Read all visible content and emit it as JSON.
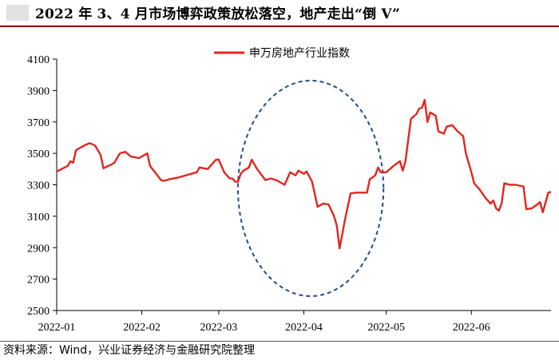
{
  "title": "2022 年 3、4 月市场博弈政策放松落空，地产走出“倒 V”",
  "source": "资料来源：Wind，兴业证券经济与金融研究院整理",
  "colors": {
    "series": "#e32521",
    "ellipse": "#1f4e8c",
    "axis": "#000000"
  },
  "chart_data": {
    "type": "line",
    "title": "",
    "xlabel": "",
    "ylabel": "",
    "ylim": [
      2500,
      4100
    ],
    "yticks": [
      2500,
      2700,
      2900,
      3100,
      3300,
      3500,
      3700,
      3900,
      4100
    ],
    "xlim": [
      "2022-01-01",
      "2022-06-30"
    ],
    "xticks": [
      "2022-01",
      "2022-02",
      "2022-03",
      "2022-04",
      "2022-05",
      "2022-06"
    ],
    "legend": "top-center",
    "grid": false,
    "highlight": {
      "shape": "dashed-ellipse",
      "range": [
        "2022-03-08",
        "2022-04-30"
      ]
    },
    "series": [
      {
        "name": "申万房地产行业指数",
        "points": [
          [
            "2022-01-01",
            3385
          ],
          [
            "2022-01-05",
            3420
          ],
          [
            "2022-01-06",
            3450
          ],
          [
            "2022-01-07",
            3440
          ],
          [
            "2022-01-08",
            3520
          ],
          [
            "2022-01-11",
            3550
          ],
          [
            "2022-01-13",
            3565
          ],
          [
            "2022-01-15",
            3550
          ],
          [
            "2022-01-17",
            3490
          ],
          [
            "2022-01-18",
            3405
          ],
          [
            "2022-01-21",
            3430
          ],
          [
            "2022-01-22",
            3440
          ],
          [
            "2022-01-24",
            3500
          ],
          [
            "2022-01-26",
            3510
          ],
          [
            "2022-01-28",
            3480
          ],
          [
            "2022-01-31",
            3470
          ],
          [
            "2022-02-03",
            3500
          ],
          [
            "2022-02-04",
            3420
          ],
          [
            "2022-02-08",
            3330
          ],
          [
            "2022-02-09",
            3325
          ],
          [
            "2022-02-11",
            3335
          ],
          [
            "2022-02-14",
            3345
          ],
          [
            "2022-02-21",
            3380
          ],
          [
            "2022-02-22",
            3410
          ],
          [
            "2022-02-25",
            3400
          ],
          [
            "2022-02-27",
            3440
          ],
          [
            "2022-02-28",
            3460
          ],
          [
            "2022-03-01",
            3460
          ],
          [
            "2022-03-02",
            3420
          ],
          [
            "2022-03-03",
            3380
          ],
          [
            "2022-03-05",
            3340
          ],
          [
            "2022-03-06",
            3340
          ],
          [
            "2022-03-07",
            3320
          ],
          [
            "2022-03-08",
            3320
          ],
          [
            "2022-03-09",
            3370
          ],
          [
            "2022-03-10",
            3390
          ],
          [
            "2022-03-12",
            3410
          ],
          [
            "2022-03-13",
            3460
          ],
          [
            "2022-03-15",
            3400
          ],
          [
            "2022-03-18",
            3330
          ],
          [
            "2022-03-20",
            3340
          ],
          [
            "2022-03-22",
            3330
          ],
          [
            "2022-03-25",
            3300
          ],
          [
            "2022-03-27",
            3380
          ],
          [
            "2022-03-29",
            3360
          ],
          [
            "2022-03-30",
            3390
          ],
          [
            "2022-04-01",
            3370
          ],
          [
            "2022-04-02",
            3385
          ],
          [
            "2022-04-04",
            3320
          ],
          [
            "2022-04-06",
            3160
          ],
          [
            "2022-04-08",
            3180
          ],
          [
            "2022-04-10",
            3175
          ],
          [
            "2022-04-12",
            3100
          ],
          [
            "2022-04-13",
            3040
          ],
          [
            "2022-04-14",
            2895
          ],
          [
            "2022-04-16",
            3080
          ],
          [
            "2022-04-18",
            3245
          ],
          [
            "2022-04-20",
            3250
          ],
          [
            "2022-04-22",
            3250
          ],
          [
            "2022-04-24",
            3250
          ],
          [
            "2022-04-25",
            3335
          ],
          [
            "2022-04-27",
            3360
          ],
          [
            "2022-04-28",
            3410
          ],
          [
            "2022-04-29",
            3380
          ],
          [
            "2022-05-01",
            3380
          ],
          [
            "2022-05-02",
            3395
          ],
          [
            "2022-05-04",
            3425
          ],
          [
            "2022-05-06",
            3450
          ],
          [
            "2022-05-07",
            3390
          ],
          [
            "2022-05-08",
            3450
          ],
          [
            "2022-05-10",
            3720
          ],
          [
            "2022-05-12",
            3750
          ],
          [
            "2022-05-13",
            3785
          ],
          [
            "2022-05-14",
            3790
          ],
          [
            "2022-05-15",
            3840
          ],
          [
            "2022-05-16",
            3700
          ],
          [
            "2022-05-17",
            3760
          ],
          [
            "2022-05-19",
            3740
          ],
          [
            "2022-05-20",
            3640
          ],
          [
            "2022-05-22",
            3625
          ],
          [
            "2022-05-23",
            3670
          ],
          [
            "2022-05-25",
            3680
          ],
          [
            "2022-05-27",
            3640
          ],
          [
            "2022-05-29",
            3610
          ],
          [
            "2022-05-30",
            3500
          ],
          [
            "2022-05-31",
            3440
          ],
          [
            "2022-06-01",
            3380
          ],
          [
            "2022-06-02",
            3310
          ],
          [
            "2022-06-04",
            3270
          ],
          [
            "2022-06-06",
            3220
          ],
          [
            "2022-06-08",
            3180
          ],
          [
            "2022-06-09",
            3200
          ],
          [
            "2022-06-10",
            3150
          ],
          [
            "2022-06-11",
            3135
          ],
          [
            "2022-06-12",
            3180
          ],
          [
            "2022-06-13",
            3310
          ],
          [
            "2022-06-15",
            3300
          ],
          [
            "2022-06-17",
            3300
          ],
          [
            "2022-06-20",
            3290
          ],
          [
            "2022-06-21",
            3145
          ],
          [
            "2022-06-23",
            3150
          ],
          [
            "2022-06-25",
            3175
          ],
          [
            "2022-06-26",
            3190
          ],
          [
            "2022-06-27",
            3125
          ],
          [
            "2022-06-29",
            3250
          ],
          [
            "2022-06-30",
            3255
          ]
        ]
      }
    ]
  }
}
